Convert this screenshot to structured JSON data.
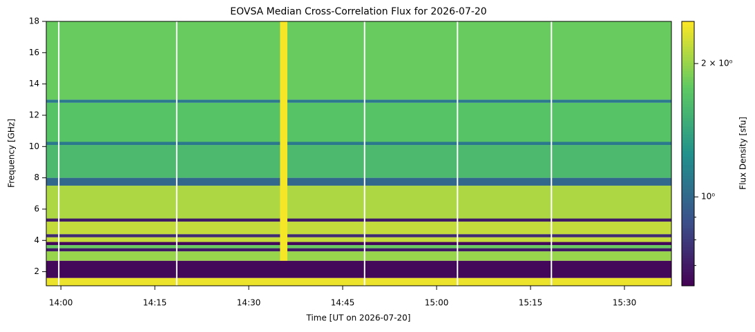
{
  "chart_data": {
    "type": "spectrogram",
    "title": "EOVSA Median Cross-Correlation Flux for 2026-07-20",
    "x_label": "Time [UT on 2026-07-20]",
    "y_label": "Frequency [GHz]",
    "colorbar_label": "Flux Density [sfu]",
    "xlim": [
      "13:57:40",
      "15:37:30"
    ],
    "xticks": [
      "14:00",
      "14:15",
      "14:30",
      "14:45",
      "15:00",
      "15:15",
      "15:30"
    ],
    "ylim": [
      1.1,
      18
    ],
    "yticks": [
      2,
      4,
      6,
      8,
      10,
      12,
      14,
      16,
      18
    ],
    "clim": [
      0.63,
      2.49
    ],
    "color_scale": "log",
    "colormap": "viridis",
    "cticks": [
      {
        "value": 2,
        "label": "2 × 10⁰"
      },
      {
        "value": 1,
        "label": "10⁰"
      }
    ],
    "cminor_ticks": [
      0.7,
      0.8,
      0.9
    ],
    "freq_bins": [
      1.1,
      1.6,
      2.7,
      3.3,
      3.5,
      3.7,
      3.9,
      4.2,
      4.4,
      5.2,
      5.4,
      7.5,
      8.0,
      10.1,
      10.3,
      12.8,
      13.0,
      18
    ],
    "flux": [
      2.4,
      0.65,
      2.0,
      0.7,
      1.8,
      0.65,
      2.2,
      0.75,
      2.2,
      0.7,
      2.1,
      1.0,
      1.6,
      1.1,
      1.7,
      1.1,
      1.8
    ],
    "burst": {
      "start": "14:35:00",
      "end": "14:36:10",
      "fmin": 2.7,
      "fmax": 18,
      "flux": 2.45
    },
    "gaps": [
      "13:59:40",
      "14:18:30",
      "14:48:30",
      "15:03:20",
      "15:18:20"
    ]
  }
}
